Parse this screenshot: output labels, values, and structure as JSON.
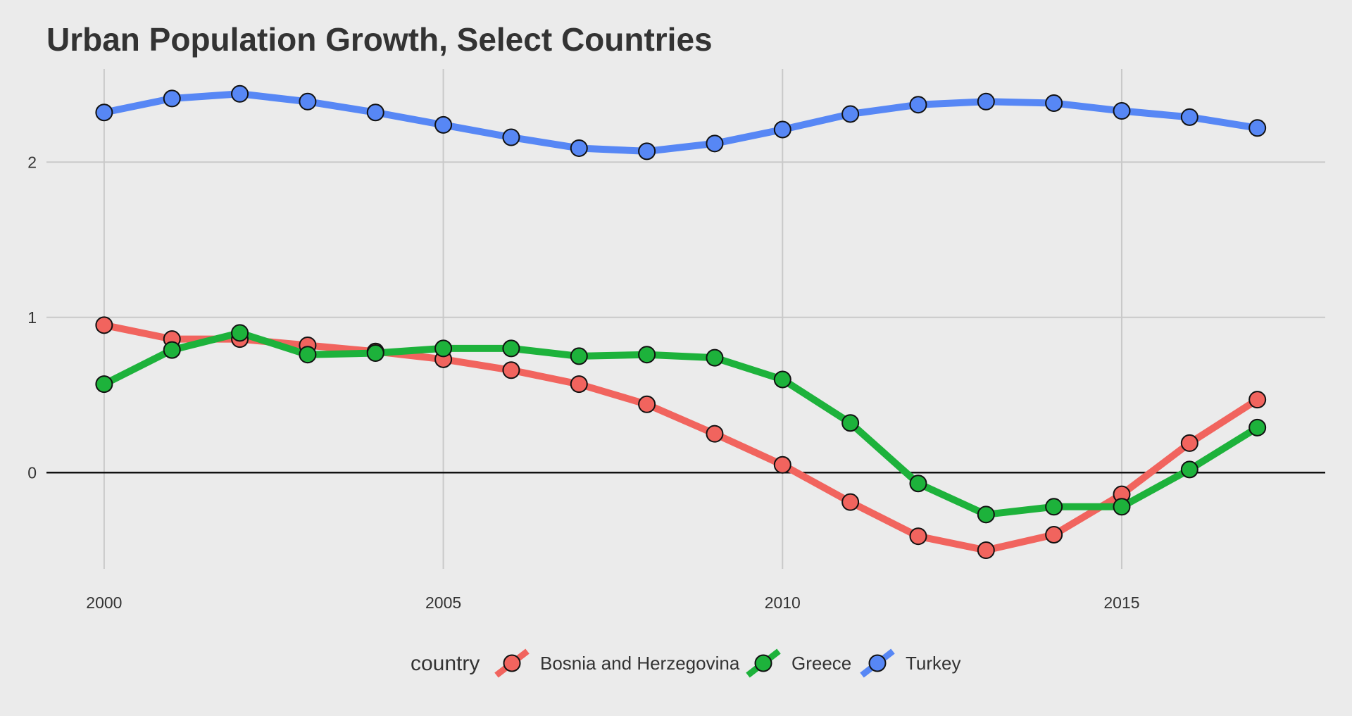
{
  "chart_data": {
    "type": "line",
    "title": "Urban Population Growth, Select Countries",
    "xlabel": "",
    "ylabel": "",
    "xlim": [
      1999.15,
      2018.0
    ],
    "ylim": [
      -0.62,
      2.6
    ],
    "x_ticks": [
      2000,
      2005,
      2010,
      2015
    ],
    "y_ticks": [
      0,
      1,
      2
    ],
    "grid": true,
    "zero_line": true,
    "legend": {
      "title": "country",
      "position": "bottom"
    },
    "x": [
      2000,
      2001,
      2002,
      2003,
      2004,
      2005,
      2006,
      2007,
      2008,
      2009,
      2010,
      2011,
      2012,
      2013,
      2014,
      2015,
      2016,
      2017
    ],
    "series": [
      {
        "name": "Bosnia and Herzegovina",
        "color": "#f1645e",
        "values": [
          0.95,
          0.86,
          0.86,
          0.82,
          0.78,
          0.73,
          0.66,
          0.57,
          0.44,
          0.25,
          0.05,
          -0.19,
          -0.41,
          -0.5,
          -0.4,
          -0.14,
          0.19,
          0.47
        ]
      },
      {
        "name": "Greece",
        "color": "#1db23b",
        "values": [
          0.57,
          0.79,
          0.9,
          0.76,
          0.77,
          0.8,
          0.8,
          0.75,
          0.76,
          0.74,
          0.6,
          0.32,
          -0.07,
          -0.27,
          -0.22,
          -0.22,
          0.02,
          0.29
        ]
      },
      {
        "name": "Turkey",
        "color": "#5787f5",
        "values": [
          2.32,
          2.41,
          2.44,
          2.39,
          2.32,
          2.24,
          2.16,
          2.09,
          2.07,
          2.12,
          2.21,
          2.31,
          2.37,
          2.39,
          2.38,
          2.33,
          2.29,
          2.22
        ]
      }
    ]
  }
}
